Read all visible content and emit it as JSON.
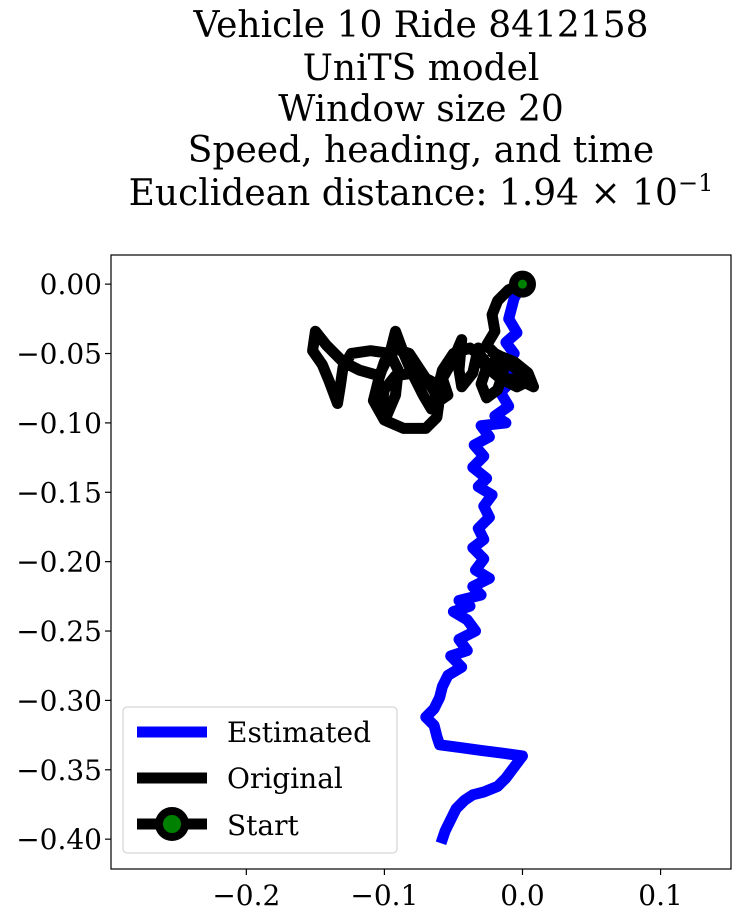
{
  "chart_data": {
    "type": "line",
    "title_lines": [
      "Vehicle 10 Ride 8412158",
      "UniTS model",
      "Window size 20",
      "Speed, heading, and time"
    ],
    "distance_label": "Euclidean distance: 1.94",
    "distance_power": "−1",
    "xlim": [
      -0.298,
      0.151
    ],
    "ylim": [
      -0.4215,
      0.021
    ],
    "xticks": [
      -0.2,
      -0.1,
      0.0,
      0.1
    ],
    "xtick_labels": [
      "−0.2",
      "−0.1",
      "0.0",
      "0.1"
    ],
    "yticks": [
      0.0,
      -0.05,
      -0.1,
      -0.15,
      -0.2,
      -0.25,
      -0.3,
      -0.35,
      -0.4
    ],
    "ytick_labels": [
      "0.00",
      "−0.05",
      "−0.10",
      "−0.15",
      "−0.20",
      "−0.25",
      "−0.30",
      "−0.35",
      "−0.40"
    ],
    "grid": false,
    "legend_position": "lower-left",
    "series": [
      {
        "name": "Estimated",
        "color": "#0000ff",
        "points": [
          [
            0.0,
            0.0
          ],
          [
            -0.006,
            -0.01
          ],
          [
            -0.01,
            -0.025
          ],
          [
            -0.004,
            -0.035
          ],
          [
            -0.012,
            -0.042
          ],
          [
            -0.006,
            -0.05
          ],
          [
            -0.014,
            -0.06
          ],
          [
            -0.008,
            -0.07
          ],
          [
            -0.016,
            -0.078
          ],
          [
            -0.01,
            -0.088
          ],
          [
            -0.02,
            -0.095
          ],
          [
            -0.012,
            -0.1
          ],
          [
            -0.03,
            -0.102
          ],
          [
            -0.024,
            -0.11
          ],
          [
            -0.035,
            -0.116
          ],
          [
            -0.028,
            -0.124
          ],
          [
            -0.036,
            -0.132
          ],
          [
            -0.026,
            -0.14
          ],
          [
            -0.032,
            -0.146
          ],
          [
            -0.022,
            -0.152
          ],
          [
            -0.028,
            -0.16
          ],
          [
            -0.024,
            -0.168
          ],
          [
            -0.032,
            -0.176
          ],
          [
            -0.028,
            -0.184
          ],
          [
            -0.036,
            -0.19
          ],
          [
            -0.028,
            -0.198
          ],
          [
            -0.034,
            -0.206
          ],
          [
            -0.024,
            -0.212
          ],
          [
            -0.036,
            -0.218
          ],
          [
            -0.03,
            -0.224
          ],
          [
            -0.046,
            -0.228
          ],
          [
            -0.038,
            -0.232
          ],
          [
            -0.05,
            -0.236
          ],
          [
            -0.04,
            -0.242
          ],
          [
            -0.034,
            -0.25
          ],
          [
            -0.046,
            -0.256
          ],
          [
            -0.04,
            -0.264
          ],
          [
            -0.052,
            -0.268
          ],
          [
            -0.044,
            -0.276
          ],
          [
            -0.054,
            -0.282
          ],
          [
            -0.058,
            -0.29
          ],
          [
            -0.06,
            -0.298
          ],
          [
            -0.064,
            -0.306
          ],
          [
            -0.07,
            -0.312
          ],
          [
            -0.064,
            -0.318
          ],
          [
            -0.062,
            -0.326
          ],
          [
            -0.06,
            -0.332
          ],
          [
            -0.045,
            -0.334
          ],
          [
            -0.03,
            -0.336
          ],
          [
            -0.015,
            -0.338
          ],
          [
            0.0,
            -0.34
          ],
          [
            -0.006,
            -0.348
          ],
          [
            -0.012,
            -0.356
          ],
          [
            -0.018,
            -0.362
          ],
          [
            -0.028,
            -0.366
          ],
          [
            -0.036,
            -0.368
          ],
          [
            -0.042,
            -0.372
          ],
          [
            -0.048,
            -0.378
          ],
          [
            -0.052,
            -0.386
          ],
          [
            -0.056,
            -0.394
          ],
          [
            -0.059,
            -0.403
          ]
        ]
      },
      {
        "name": "Original",
        "color": "#000000",
        "points": [
          [
            0.0,
            0.0
          ],
          [
            -0.01,
            -0.004
          ],
          [
            -0.018,
            -0.012
          ],
          [
            -0.022,
            -0.022
          ],
          [
            -0.02,
            -0.034
          ],
          [
            -0.026,
            -0.044
          ],
          [
            -0.018,
            -0.052
          ],
          [
            -0.006,
            -0.06
          ],
          [
            0.004,
            -0.07
          ],
          [
            -0.004,
            -0.074
          ],
          [
            -0.016,
            -0.068
          ],
          [
            -0.028,
            -0.058
          ],
          [
            -0.032,
            -0.046
          ],
          [
            -0.036,
            -0.064
          ],
          [
            -0.044,
            -0.074
          ],
          [
            -0.046,
            -0.062
          ],
          [
            -0.044,
            -0.04
          ],
          [
            -0.05,
            -0.054
          ],
          [
            -0.058,
            -0.068
          ],
          [
            -0.054,
            -0.08
          ],
          [
            -0.06,
            -0.084
          ],
          [
            -0.066,
            -0.074
          ],
          [
            -0.074,
            -0.062
          ],
          [
            -0.082,
            -0.05
          ],
          [
            -0.094,
            -0.046
          ],
          [
            -0.1,
            -0.056
          ],
          [
            -0.104,
            -0.068
          ],
          [
            -0.108,
            -0.084
          ],
          [
            -0.1,
            -0.098
          ],
          [
            -0.086,
            -0.104
          ],
          [
            -0.07,
            -0.104
          ],
          [
            -0.062,
            -0.096
          ],
          [
            -0.06,
            -0.082
          ],
          [
            -0.066,
            -0.07
          ],
          [
            -0.078,
            -0.064
          ],
          [
            -0.092,
            -0.066
          ],
          [
            -0.1,
            -0.076
          ],
          [
            -0.102,
            -0.088
          ],
          [
            -0.098,
            -0.094
          ],
          [
            -0.092,
            -0.08
          ],
          [
            -0.09,
            -0.062
          ],
          [
            -0.096,
            -0.05
          ],
          [
            -0.11,
            -0.048
          ],
          [
            -0.124,
            -0.05
          ],
          [
            -0.13,
            -0.06
          ],
          [
            -0.132,
            -0.074
          ],
          [
            -0.134,
            -0.086
          ],
          [
            -0.14,
            -0.07
          ],
          [
            -0.145,
            -0.058
          ],
          [
            -0.152,
            -0.048
          ],
          [
            -0.15,
            -0.034
          ],
          [
            -0.142,
            -0.044
          ],
          [
            -0.13,
            -0.056
          ],
          [
            -0.118,
            -0.062
          ],
          [
            -0.104,
            -0.066
          ],
          [
            -0.096,
            -0.05
          ],
          [
            -0.092,
            -0.034
          ],
          [
            -0.086,
            -0.05
          ],
          [
            -0.08,
            -0.064
          ],
          [
            -0.072,
            -0.08
          ],
          [
            -0.066,
            -0.09
          ],
          [
            -0.062,
            -0.078
          ],
          [
            -0.058,
            -0.062
          ],
          [
            -0.05,
            -0.05
          ],
          [
            -0.038,
            -0.046
          ],
          [
            -0.03,
            -0.052
          ],
          [
            -0.022,
            -0.062
          ],
          [
            -0.012,
            -0.068
          ],
          [
            0.0,
            -0.07
          ],
          [
            0.008,
            -0.074
          ],
          [
            0.004,
            -0.064
          ],
          [
            -0.006,
            -0.056
          ],
          [
            -0.016,
            -0.052
          ],
          [
            -0.026,
            -0.06
          ],
          [
            -0.03,
            -0.072
          ],
          [
            -0.026,
            -0.082
          ],
          [
            -0.018,
            -0.076
          ],
          [
            -0.014,
            -0.064
          ],
          [
            -0.016,
            -0.052
          ],
          [
            -0.024,
            -0.048
          ]
        ]
      },
      {
        "name": "Start",
        "color": "#000000",
        "marker_face": "#008000",
        "points": [
          [
            0.0,
            0.0
          ]
        ]
      }
    ]
  }
}
